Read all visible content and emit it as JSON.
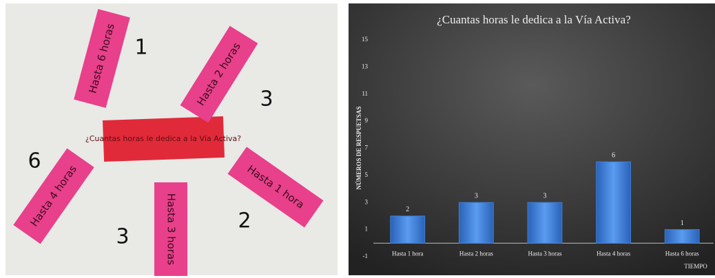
{
  "photo": {
    "question": "¿Cuantas horas le dedica a la Vía Activa?",
    "notes": [
      {
        "label": "Hasta 6 horas",
        "count": 1
      },
      {
        "label": "Hasta 2 horas",
        "count": 3
      },
      {
        "label": "Hasta 4 horas",
        "count": 6
      },
      {
        "label": "Hasta 3 horas",
        "count": 3
      },
      {
        "label": "Hasta 1 hora",
        "count": 2
      }
    ]
  },
  "chart_data": {
    "type": "bar",
    "title": "¿Cuantas horas le dedica a la Vía Activa?",
    "y_label": "NÚMEROS DE RESPUETSAS",
    "x_label": "TIEMPO",
    "categories": [
      "Hasta 1 hora",
      "Hasta 2 horas",
      "Hasta 3 horas",
      "Hasta 4 horas",
      "Hasta 6 horas"
    ],
    "values": [
      2,
      3,
      3,
      6,
      1
    ],
    "color": "#3f7fd6",
    "ylim": [
      -1,
      15
    ],
    "yticks": [
      -1,
      1,
      3,
      5,
      7,
      9,
      11,
      13,
      15
    ],
    "grid": false
  }
}
